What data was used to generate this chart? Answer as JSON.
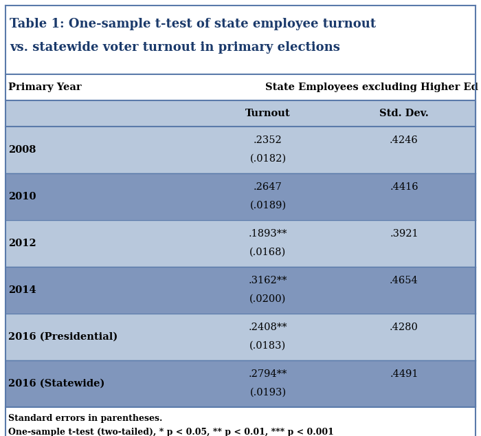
{
  "title_line1": "Table 1: One-sample t-test of state employee turnout",
  "title_line2": "vs. statewide voter turnout in primary elections",
  "title_color": "#1B3A6B",
  "col_header1": "Primary Year",
  "col_header2": "State Employees excluding Higher Ed",
  "sub_header_turnout": "Turnout",
  "sub_header_std": "Std. Dev.",
  "rows": [
    {
      "year": "2008",
      "turnout": ".2352",
      "se": "(.0182)",
      "sig": "",
      "std": ".4246",
      "shaded": false
    },
    {
      "year": "2010",
      "turnout": ".2647",
      "se": "(.0189)",
      "sig": "",
      "std": ".4416",
      "shaded": true
    },
    {
      "year": "2012",
      "turnout": ".1893",
      "se": "(.0168)",
      "sig": "**",
      "std": ".3921",
      "shaded": false
    },
    {
      "year": "2014",
      "turnout": ".3162",
      "se": "(.0200)",
      "sig": "**",
      "std": ".4654",
      "shaded": true
    },
    {
      "year": "2016 (Presidential)",
      "turnout": ".2408",
      "se": "(.0183)",
      "sig": "**",
      "std": ".4280",
      "shaded": false
    },
    {
      "year": "2016 (Statewide)",
      "turnout": ".2794",
      "se": "(.0193)",
      "sig": "**",
      "std": ".4491",
      "shaded": true
    }
  ],
  "footnote1": "Standard errors in parentheses.",
  "footnote2": "One-sample t-test (two-tailed), * p < 0.05, ** p < 0.01, *** p < 0.001",
  "color_shaded": "#8096BC",
  "color_unshaded": "#B8C8DC",
  "color_white": "#FFFFFF",
  "color_subheader": "#B8C8DC",
  "border_color": "#5A7AAA",
  "fig_bg": "#FFFFFF",
  "title_bg": "#FFFFFF",
  "col_header_bg": "#FFFFFF"
}
